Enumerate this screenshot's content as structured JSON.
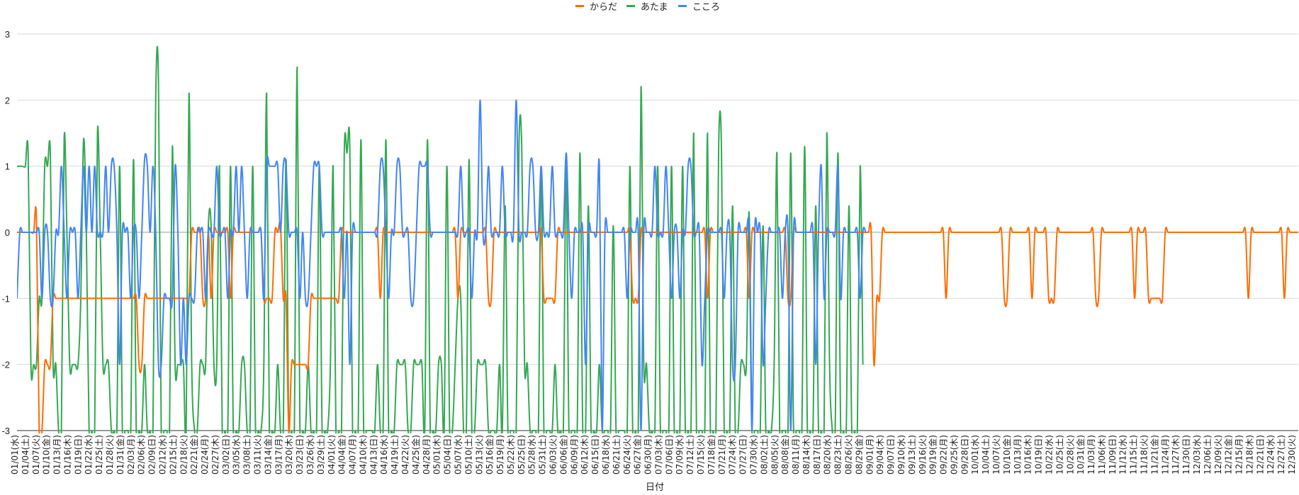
{
  "chart_data": {
    "type": "line",
    "title": "",
    "xlabel": "日付",
    "ylabel": "",
    "ylim": [
      -3,
      3
    ],
    "yticks": [
      -3,
      -2,
      -1,
      0,
      1,
      2,
      3
    ],
    "grid": true,
    "legend": "top-center",
    "x_tick_labels": [
      "01/01(水)",
      "01/04(土)",
      "01/07(火)",
      "01/10(金)",
      "01/13(月)",
      "01/16(木)",
      "01/19(日)",
      "01/22(水)",
      "01/25(土)",
      "01/28(火)",
      "01/31(金)",
      "02/03(月)",
      "02/06(木)",
      "02/09(日)",
      "02/12(水)",
      "02/15(土)",
      "02/18(火)",
      "02/21(金)",
      "02/24(月)",
      "02/27(木)",
      "03/02(日)",
      "03/05(水)",
      "03/08(土)",
      "03/11(火)",
      "03/14(金)",
      "03/17(月)",
      "03/20(木)",
      "03/23(日)",
      "03/26(水)",
      "03/29(土)",
      "04/01(火)",
      "04/04(金)",
      "04/07(月)",
      "04/10(木)",
      "04/13(日)",
      "04/16(水)",
      "04/19(土)",
      "04/22(火)",
      "04/25(金)",
      "04/28(月)",
      "05/01(木)",
      "05/04(日)",
      "05/07(水)",
      "05/10(土)",
      "05/13(火)",
      "05/16(金)",
      "05/19(月)",
      "05/22(木)",
      "05/25(日)",
      "05/28(水)",
      "05/31(土)",
      "06/03(火)",
      "06/06(金)",
      "06/09(月)",
      "06/12(木)",
      "06/15(日)",
      "06/18(水)",
      "06/21(土)",
      "06/24(火)",
      "06/27(金)",
      "06/30(月)",
      "07/03(木)",
      "07/06(日)",
      "07/09(水)",
      "07/12(土)",
      "07/15(火)",
      "07/18(金)",
      "07/21(月)",
      "07/24(木)",
      "07/27(日)",
      "07/30(水)",
      "08/02(土)",
      "08/05(火)",
      "08/08(金)",
      "08/11(月)",
      "08/14(木)",
      "08/17(日)",
      "08/20(水)",
      "08/23(土)",
      "08/26(火)",
      "08/29(金)",
      "09/01(月)",
      "09/04(木)",
      "09/07(日)",
      "09/10(水)",
      "09/13(土)",
      "09/16(火)",
      "09/19(金)",
      "09/22(月)",
      "09/25(木)",
      "09/28(日)",
      "10/01(水)",
      "10/04(土)",
      "10/07(火)",
      "10/10(金)",
      "10/13(月)",
      "10/16(木)",
      "10/19(日)",
      "10/22(水)",
      "10/25(土)",
      "10/28(火)",
      "10/31(金)",
      "11/03(月)",
      "11/06(木)",
      "11/09(日)",
      "11/12(水)",
      "11/15(土)",
      "11/18(火)",
      "11/21(金)",
      "11/24(月)",
      "11/27(木)",
      "11/30(日)",
      "12/03(水)",
      "12/06(土)",
      "12/09(火)",
      "12/12(金)",
      "12/15(月)",
      "12/18(木)",
      "12/21(日)",
      "12/24(水)",
      "12/27(土)",
      "12/30(火)"
    ],
    "series": [
      {
        "name": "からだ",
        "color": "#FF6D01",
        "values": [
          0,
          0,
          0,
          0,
          0,
          0,
          0,
          0.2,
          -3,
          -3,
          -2,
          -2,
          -2,
          -1,
          -1,
          -1,
          -1,
          -1,
          -1,
          -1,
          -1,
          -1,
          -1,
          -1,
          -1,
          -1,
          -1,
          -1,
          -1,
          -1,
          -1,
          -1,
          -1,
          -1,
          -1,
          -1,
          -1,
          -1,
          -1,
          -1,
          -1,
          -1,
          -1,
          -1,
          -2,
          -2,
          -1,
          -1,
          -1,
          -1,
          -1,
          -1,
          -1,
          -1,
          -1,
          -1,
          -1,
          -1,
          -1,
          -1,
          -1,
          -1,
          -1,
          0,
          0,
          0,
          0,
          -1,
          -1,
          0,
          -1,
          0,
          0,
          0,
          0,
          0,
          0,
          -1,
          0,
          0,
          0,
          0,
          0,
          0,
          0,
          0,
          0,
          0,
          0,
          -1,
          -1,
          -1,
          -1,
          0,
          0,
          0.1,
          -1,
          -1,
          -3,
          -2,
          -2,
          -2,
          -2,
          -2,
          -2,
          -2,
          -1,
          -1,
          -1,
          -1,
          -1,
          -1,
          -1,
          -1,
          -1,
          -1,
          -1,
          0,
          0,
          0,
          0,
          0,
          0,
          0,
          0,
          0,
          0,
          0,
          0,
          0,
          0,
          -1,
          0,
          0,
          0,
          0,
          0,
          0,
          0,
          0,
          0,
          0,
          0,
          0,
          0,
          0,
          0,
          0,
          0,
          0,
          0,
          0,
          0,
          0,
          0,
          0,
          0,
          0,
          0,
          -1,
          0,
          0,
          0,
          0,
          0,
          0,
          0,
          0,
          0,
          0,
          -1,
          -1,
          0,
          0,
          0,
          0,
          0,
          0,
          0,
          0,
          0,
          0,
          0,
          0,
          0,
          0,
          0,
          0,
          0,
          0,
          -1,
          -1,
          -1,
          -1,
          -1,
          0,
          0,
          0,
          0,
          0,
          0,
          0,
          0,
          0,
          0,
          0,
          0,
          0,
          0,
          0,
          0,
          0,
          0,
          0,
          0,
          0,
          0,
          0,
          0,
          0,
          0,
          0,
          -1,
          -1,
          -1,
          0,
          0,
          0,
          0,
          0,
          0,
          0,
          0,
          0,
          0,
          0,
          0,
          0,
          0,
          0,
          0,
          0,
          0,
          0,
          0,
          0,
          0,
          0,
          0,
          -1,
          0,
          0,
          0,
          0,
          0,
          0,
          0,
          0,
          0,
          0,
          0,
          0,
          0,
          0,
          -1,
          0,
          0,
          0,
          0,
          0,
          0,
          0,
          0,
          0,
          0,
          0,
          0,
          0,
          -1,
          -1,
          0,
          0,
          0,
          0,
          0,
          0,
          0,
          0,
          0,
          0,
          0,
          0,
          0,
          0,
          0,
          0,
          0,
          0,
          0,
          0,
          0,
          0,
          0,
          0,
          0,
          0,
          0,
          0,
          0,
          -2,
          -1,
          -1,
          0,
          0,
          0,
          0,
          0,
          0,
          0,
          0,
          0,
          0,
          0,
          0,
          0,
          0,
          0,
          0,
          0,
          0,
          0,
          0,
          0,
          0,
          0,
          -1,
          0,
          0,
          0,
          0,
          0,
          0,
          0,
          0,
          0,
          0,
          0,
          0,
          0,
          0,
          0,
          0,
          0,
          0,
          0,
          0,
          -1,
          -1,
          0,
          0,
          0,
          0,
          0,
          0,
          0,
          0,
          -1,
          0,
          0,
          0,
          0,
          0,
          -1,
          -1,
          -1,
          0,
          0,
          0,
          0,
          0,
          0,
          0,
          0,
          0,
          0,
          0,
          0,
          0,
          0,
          -1,
          -1,
          0,
          0,
          0,
          0,
          0,
          0,
          0,
          0,
          0,
          0,
          0,
          0,
          -1,
          0,
          0,
          0,
          0,
          -1,
          -1,
          -1,
          -1,
          -1,
          -1,
          0,
          0,
          0,
          0,
          0,
          0,
          0,
          0,
          0,
          0,
          0,
          0,
          0,
          0,
          0,
          0,
          0,
          0,
          0,
          0,
          0,
          0,
          0,
          0,
          0,
          0,
          0,
          0,
          0,
          0,
          -1,
          0,
          0,
          0,
          0,
          0,
          0,
          0,
          0,
          0,
          0,
          0,
          0,
          -1,
          0,
          0,
          0,
          0,
          0
        ]
      },
      {
        "name": "あたま",
        "color": "#34A853",
        "values": [
          1,
          1,
          1,
          1,
          1.2,
          -2,
          -2,
          -2,
          -1,
          -1,
          1,
          1,
          1.2,
          -2,
          -2,
          -3,
          -3,
          1.4,
          0,
          -2,
          -2,
          -2,
          -2,
          -1,
          1.4,
          0,
          -3,
          -3,
          -3,
          1.5,
          0,
          -2,
          -2,
          -2,
          -3,
          -3,
          -3,
          1,
          -3,
          -3,
          -3,
          -3,
          1.1,
          -3,
          -3,
          -3,
          -2,
          -3,
          -3,
          -3,
          2,
          2.3,
          -3,
          -3,
          -3,
          -3,
          1.3,
          -2,
          -2,
          -2,
          -2,
          -3,
          2.1,
          -2,
          -3,
          -3,
          -2,
          -2,
          -2,
          0.1,
          0.1,
          -2,
          -2,
          1,
          -3,
          -3,
          -3,
          1,
          -3,
          -3,
          -3,
          -2,
          -2,
          -3,
          -3,
          1,
          -3,
          -3,
          -3,
          -2,
          2.1,
          -3,
          -3,
          -3,
          -2,
          -3,
          -3,
          1.1,
          -3,
          -3,
          -3,
          2.5,
          -3,
          -3,
          -3,
          -2,
          -3,
          -3,
          -3,
          1,
          -3,
          -3,
          -3,
          -2,
          1,
          -3,
          -3,
          -3,
          1.2,
          1.2,
          1.3,
          -3,
          -3,
          -3,
          1.4,
          -3,
          -3,
          -3,
          -3,
          -3,
          -2,
          -3,
          -3,
          1.4,
          -3,
          -3,
          -3,
          -2,
          -2,
          -2,
          -2,
          -3,
          -3,
          -2,
          -2,
          -2,
          -2,
          -3,
          1.4,
          -3,
          -3,
          -3,
          -2,
          -2,
          -3,
          1,
          -3,
          -3,
          -2,
          -1,
          -1,
          -3,
          -3,
          1.1,
          -3,
          -3,
          -2,
          -2,
          -2,
          -2,
          -3,
          -3,
          -3,
          -3,
          -2,
          -3,
          0.4,
          -3,
          -3,
          -3,
          -3,
          1.3,
          1.3,
          -2,
          -2,
          -3,
          -3,
          -3,
          -3,
          1,
          -3,
          -3,
          -3,
          -3,
          -2,
          -3,
          -3,
          -3,
          1,
          -3,
          -3,
          -3,
          -3,
          1.2,
          -3,
          -3,
          0.4,
          -3,
          -3,
          -3,
          -2,
          -3,
          -3,
          -3,
          -3,
          0.1,
          -3,
          -3,
          -3,
          -3,
          -3,
          1,
          -3,
          -3,
          -3,
          2.2,
          -2,
          -2,
          -3,
          -3,
          -3,
          1,
          -3,
          -3,
          -3,
          -3,
          1,
          -3,
          -3,
          -3,
          1,
          -3,
          -3,
          -3,
          1.5,
          -3,
          -3,
          -3,
          -3,
          1.5,
          -3,
          -3,
          -3,
          1.3,
          1.3,
          -3,
          -3,
          -3,
          0.4,
          -3,
          -3,
          -2,
          -2,
          -2,
          0.3,
          -3,
          -3,
          -3,
          -3,
          0.1,
          -3,
          -3,
          -3,
          -2,
          1.2,
          -3,
          -3,
          -3,
          -3,
          1.2,
          -3,
          -3,
          -3,
          -3,
          1.3,
          -3,
          -3,
          -3,
          0.4,
          -3,
          -3,
          -3,
          1.5,
          -2,
          -3,
          -3,
          1.2,
          -3,
          -3,
          -3,
          0.4,
          -3,
          -3,
          -3,
          1,
          -2
        ]
      },
      {
        "name": "こころ",
        "color": "#4285F4",
        "values": [
          -1,
          0,
          0,
          0,
          0,
          0,
          0,
          0,
          0,
          -1,
          0,
          0,
          -1,
          -1,
          0,
          0,
          1,
          0,
          -1,
          0,
          0,
          0,
          -1,
          0,
          1,
          0,
          1,
          0,
          1,
          0,
          0,
          0,
          1,
          0,
          1,
          1,
          0,
          -2,
          0,
          0,
          0,
          -1,
          0,
          0,
          -1,
          0,
          1.1,
          1,
          0,
          1,
          0,
          -2,
          -2,
          -1,
          -1,
          -1,
          -1,
          1,
          0,
          -2,
          -1,
          -2,
          -1,
          -1,
          -1,
          0,
          0,
          0,
          -1,
          0,
          0,
          0,
          1,
          0,
          0,
          0,
          -1,
          0,
          0,
          1,
          0,
          1,
          0,
          -1,
          0,
          0,
          0,
          0,
          0,
          -1,
          1,
          1,
          1,
          1,
          1,
          0,
          1,
          1,
          0,
          0,
          0,
          0,
          -1,
          0,
          -1,
          -1,
          0,
          1,
          1,
          1,
          0,
          0,
          0,
          0,
          0,
          0,
          0,
          0,
          -1,
          0,
          -2,
          0,
          0,
          0,
          0,
          0,
          0,
          0,
          0,
          0,
          0,
          1,
          1,
          0,
          -1,
          0,
          0,
          1,
          1,
          0,
          0,
          0,
          -1,
          -1,
          0,
          1,
          1,
          1,
          1,
          0,
          0,
          0,
          0,
          0,
          0,
          0,
          0,
          0,
          0,
          0,
          1,
          0,
          0,
          0,
          -1,
          0,
          0,
          2,
          0,
          0,
          1,
          0,
          0,
          0,
          0,
          1,
          0,
          0,
          0,
          0,
          2,
          0,
          0,
          0,
          0,
          1,
          1,
          0,
          0,
          1,
          0,
          0,
          0,
          1,
          0,
          0,
          0,
          0,
          1.2,
          0,
          -1,
          0,
          0,
          0,
          0,
          -2,
          0,
          0,
          0,
          0,
          1,
          -3,
          0,
          0,
          0,
          0,
          0,
          0,
          0,
          0,
          -1,
          0,
          0,
          0,
          0,
          -3,
          0,
          0,
          0,
          0,
          1,
          0,
          0,
          0,
          1,
          0,
          -1,
          0,
          0,
          -1,
          0,
          0,
          1,
          1,
          0,
          0,
          0,
          -2,
          -1,
          0,
          0,
          0,
          0,
          0,
          0,
          -1,
          0,
          0,
          -2,
          -2,
          0,
          0,
          0,
          0,
          0,
          -3,
          0,
          0,
          0,
          -2,
          -1,
          0,
          0,
          0,
          0,
          0,
          -1,
          0,
          0,
          -3,
          0,
          0,
          0,
          0,
          0,
          0,
          0,
          0,
          -2,
          0,
          1,
          -1,
          0,
          0,
          0,
          0,
          1,
          -1,
          0,
          0,
          0,
          0,
          0,
          0,
          -1,
          0,
          0
        ]
      }
    ]
  }
}
